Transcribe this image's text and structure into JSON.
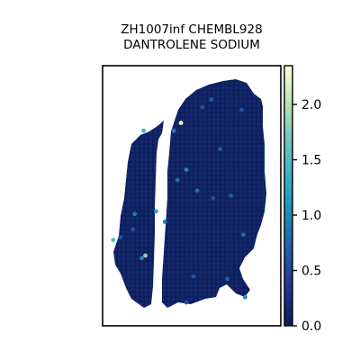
{
  "chart_data": {
    "type": "scatter",
    "title_line1": "ZH1007inf CHEMBL928",
    "title_line2": "DANTROLENE SODIUM",
    "xlabel": "",
    "ylabel": "",
    "grid": false,
    "legend": "none",
    "colormap": "YlGnBu",
    "colorbar": {
      "location": "right",
      "range": [
        0.0,
        2.35
      ],
      "ticks": [
        0.0,
        0.5,
        1.0,
        1.5,
        2.0
      ],
      "tick_labels": [
        "0.0",
        "0.5",
        "1.0",
        "1.5",
        "2.0"
      ]
    },
    "highlight_spots": [
      {
        "x": 0.44,
        "y": 0.78,
        "value": 2.2
      },
      {
        "x": 0.4,
        "y": 0.75,
        "value": 0.9
      },
      {
        "x": 0.47,
        "y": 0.6,
        "value": 1.0
      },
      {
        "x": 0.42,
        "y": 0.56,
        "value": 0.8
      },
      {
        "x": 0.23,
        "y": 0.75,
        "value": 1.4
      },
      {
        "x": 0.53,
        "y": 0.52,
        "value": 0.8
      },
      {
        "x": 0.35,
        "y": 0.4,
        "value": 0.9
      },
      {
        "x": 0.24,
        "y": 0.27,
        "value": 1.8
      },
      {
        "x": 0.22,
        "y": 0.26,
        "value": 1.0
      },
      {
        "x": 0.06,
        "y": 0.33,
        "value": 1.5
      },
      {
        "x": 0.1,
        "y": 0.34,
        "value": 0.6
      },
      {
        "x": 0.17,
        "y": 0.37,
        "value": 0.6
      },
      {
        "x": 0.18,
        "y": 0.43,
        "value": 0.9
      },
      {
        "x": 0.79,
        "y": 0.35,
        "value": 0.8
      },
      {
        "x": 0.72,
        "y": 0.5,
        "value": 0.7
      },
      {
        "x": 0.62,
        "y": 0.49,
        "value": 0.6
      },
      {
        "x": 0.56,
        "y": 0.84,
        "value": 0.6
      },
      {
        "x": 0.61,
        "y": 0.87,
        "value": 0.7
      },
      {
        "x": 0.78,
        "y": 0.83,
        "value": 0.6
      },
      {
        "x": 0.51,
        "y": 0.19,
        "value": 0.6
      },
      {
        "x": 0.8,
        "y": 0.11,
        "value": 1.0
      },
      {
        "x": 0.7,
        "y": 0.18,
        "value": 0.7
      },
      {
        "x": 0.47,
        "y": 0.09,
        "value": 0.6
      },
      {
        "x": 0.3,
        "y": 0.44,
        "value": 1.2
      },
      {
        "x": 0.66,
        "y": 0.68,
        "value": 0.7
      }
    ]
  }
}
